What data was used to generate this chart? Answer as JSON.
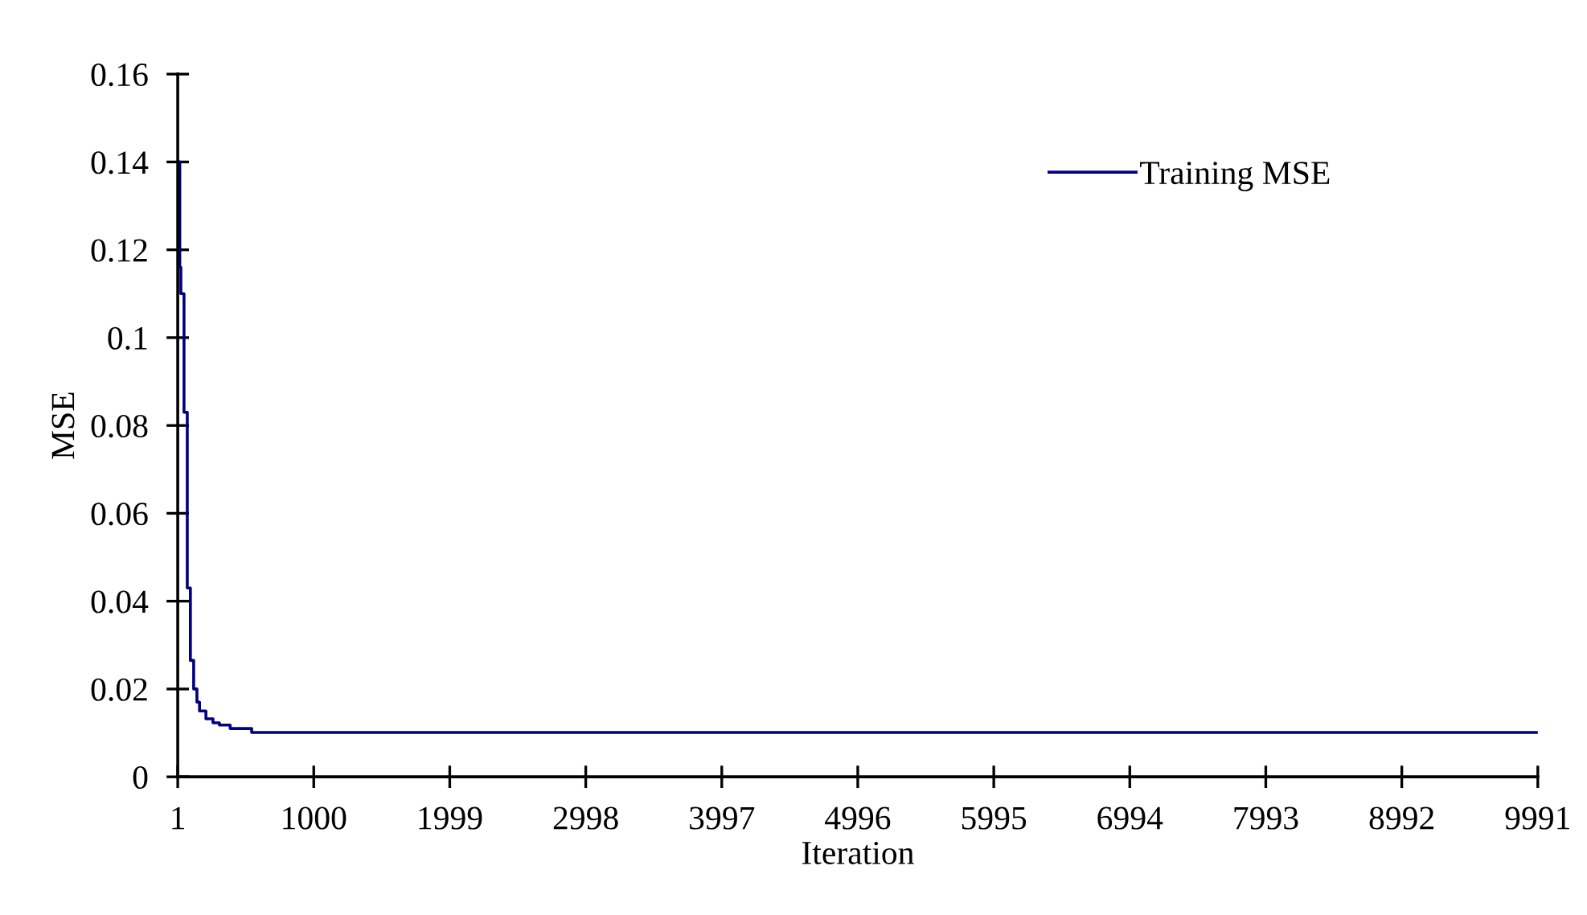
{
  "chart_data": {
    "type": "step",
    "xlabel": "Iteration",
    "ylabel": "MSE",
    "xlim": [
      1,
      9991
    ],
    "xticks": [
      1,
      1000,
      1999,
      2998,
      3997,
      4996,
      5995,
      6994,
      7993,
      8992,
      9991
    ],
    "ylim": [
      0,
      0.16
    ],
    "yticks": [
      0,
      0.02,
      0.04,
      0.06,
      0.08,
      0.1,
      0.12,
      0.14,
      0.16
    ],
    "grid": false,
    "legend": "top right",
    "marker": "none",
    "line_style": "solid",
    "series": [
      {
        "name": "Training MSE",
        "color": "#000080",
        "x": [
          1,
          16,
          24,
          47,
          71,
          94,
          118,
          142,
          161,
          208,
          260,
          307,
          386,
          544,
          9991
        ],
        "values": [
          0.14,
          0.116,
          0.11,
          0.083,
          0.043,
          0.0265,
          0.02,
          0.017,
          0.015,
          0.0132,
          0.0123,
          0.0118,
          0.011,
          0.0101,
          0.0101
        ]
      }
    ]
  }
}
